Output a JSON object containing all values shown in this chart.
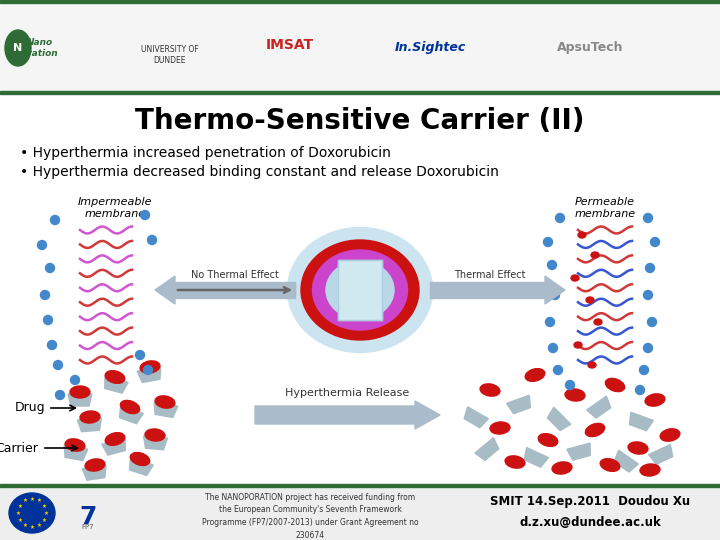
{
  "title": "Thermo-Sensitive Carrier (II)",
  "bullet1": "• Hyperthermia increased penetration of Doxorubicin",
  "bullet2": "• Hyperthermia decreased binding constant and release Doxorubicin",
  "label_impermeable": "Impermeable\nmembrane",
  "label_permeable": "Permeable\nmembrane",
  "label_no_thermal": "No Thermal Effect",
  "label_thermal": "Thermal Effect",
  "label_hyperthermia": "Hyperthermia Release",
  "label_drug": "Drug",
  "label_carrier": "Carrier",
  "footer_text": "The NANOPORATION project has received funding from\nthe European Community's Seventh Framework\nProgramme (FP7/2007-2013) under Grant Agreement no\n230674",
  "footer_right": "SMIT 14.Sep.2011  Doudou Xu\nd.z.xu@dundee.ac.uk",
  "bg_color": "#ffffff",
  "header_bar_color": "#2e6b35",
  "footer_bar_color": "#2e6b35",
  "title_color": "#000000",
  "drug_color": "#cc1111",
  "carrier_color": "#a8bcc5",
  "liposome_halo": "#cce4f0",
  "liposome_outer": "#cc1111",
  "liposome_mid": "#cc44cc",
  "liposome_core": "#b8d8e8",
  "arrow_color": "#aabbcc",
  "mem_pink": "#cc44cc",
  "mem_red": "#cc2222",
  "mem_blue": "#2244cc",
  "dot_blue": "#4488cc"
}
